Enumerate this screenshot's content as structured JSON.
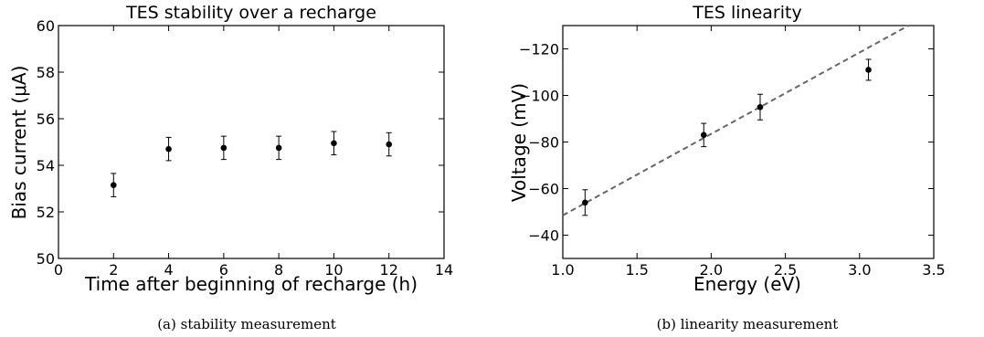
{
  "chart_data": [
    {
      "type": "scatter",
      "title": "TES stability over a recharge",
      "xlabel": "Time after beginning of recharge (h)",
      "ylabel": "Bias current (μA)",
      "xlim": [
        0,
        14
      ],
      "ylim": [
        50,
        60
      ],
      "xticks": [
        0,
        2,
        4,
        6,
        8,
        10,
        12,
        14
      ],
      "yticks": [
        50,
        52,
        54,
        56,
        58,
        60
      ],
      "points": [
        {
          "x": 2,
          "y": 53.15,
          "err": 0.5
        },
        {
          "x": 4,
          "y": 54.7,
          "err": 0.5
        },
        {
          "x": 6,
          "y": 54.75,
          "err": 0.5
        },
        {
          "x": 8,
          "y": 54.75,
          "err": 0.5
        },
        {
          "x": 10,
          "y": 54.95,
          "err": 0.5
        },
        {
          "x": 12,
          "y": 54.9,
          "err": 0.5
        }
      ],
      "error_bars": true,
      "grid": false,
      "caption": "(a) stability measurement"
    },
    {
      "type": "scatter",
      "title": "TES linearity",
      "xlabel": "Energy (eV)",
      "ylabel": "Voltage (mV)",
      "xlim": [
        1.0,
        3.5
      ],
      "ylim": [
        -30,
        -130
      ],
      "y_inverted": true,
      "xticks": [
        1.0,
        1.5,
        2.0,
        2.5,
        3.0,
        3.5
      ],
      "yticks": [
        -40,
        -60,
        -80,
        -100,
        -120
      ],
      "points": [
        {
          "x": 1.15,
          "y": -54,
          "err": 5.5
        },
        {
          "x": 1.95,
          "y": -83,
          "err": 5.0
        },
        {
          "x": 2.33,
          "y": -95,
          "err": 5.5
        },
        {
          "x": 3.06,
          "y": -111,
          "err": 4.5
        }
      ],
      "fit_line": {
        "x": [
          1.0,
          3.33
        ],
        "y": [
          -48.5,
          -130
        ],
        "style": "dashed",
        "color": "#666666"
      },
      "error_bars": true,
      "grid": false,
      "caption": "(b) linearity measurement"
    }
  ]
}
